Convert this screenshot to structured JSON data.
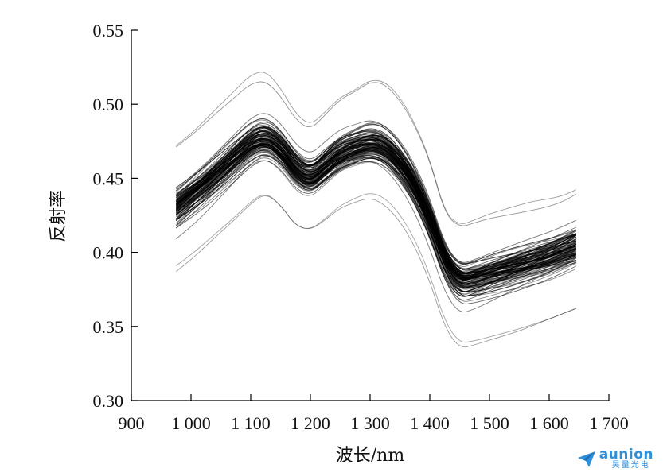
{
  "chart_data": {
    "type": "line",
    "title": "",
    "xlabel": "波长/nm",
    "ylabel": "反射率",
    "xlim": [
      900,
      1700
    ],
    "ylim": [
      0.3,
      0.55
    ],
    "x_ticks": [
      900,
      1000,
      1100,
      1200,
      1300,
      1400,
      1500,
      1600,
      1700
    ],
    "x_tick_labels": [
      "900",
      "1 000",
      "1 100",
      "1 200",
      "1 300",
      "1 400",
      "1 500",
      "1 600",
      "1 700"
    ],
    "y_ticks": [
      0.3,
      0.35,
      0.4,
      0.45,
      0.5,
      0.55
    ],
    "y_tick_labels": [
      "0.30",
      "0.35",
      "0.40",
      "0.45",
      "0.50",
      "0.55"
    ],
    "grid": false,
    "legend": "none",
    "line_color": "#000000",
    "series_count": 120,
    "x": [
      975,
      1000,
      1025,
      1050,
      1075,
      1100,
      1125,
      1150,
      1175,
      1200,
      1225,
      1250,
      1275,
      1300,
      1325,
      1350,
      1375,
      1400,
      1425,
      1450,
      1475,
      1500,
      1525,
      1550,
      1575,
      1600,
      1625,
      1645
    ],
    "series_median": [
      0.43,
      0.438,
      0.446,
      0.455,
      0.464,
      0.473,
      0.477,
      0.47,
      0.456,
      0.449,
      0.458,
      0.466,
      0.47,
      0.473,
      0.47,
      0.46,
      0.445,
      0.423,
      0.395,
      0.38,
      0.382,
      0.385,
      0.388,
      0.391,
      0.394,
      0.397,
      0.401,
      0.404
    ],
    "series_max": [
      0.472,
      0.48,
      0.49,
      0.5,
      0.51,
      0.52,
      0.523,
      0.513,
      0.497,
      0.49,
      0.5,
      0.51,
      0.514,
      0.52,
      0.517,
      0.505,
      0.487,
      0.463,
      0.427,
      0.418,
      0.422,
      0.426,
      0.429,
      0.432,
      0.435,
      0.438,
      0.442,
      0.447
    ],
    "series_min": [
      0.384,
      0.392,
      0.402,
      0.412,
      0.422,
      0.433,
      0.44,
      0.432,
      0.418,
      0.415,
      0.422,
      0.43,
      0.434,
      0.437,
      0.432,
      0.42,
      0.402,
      0.378,
      0.346,
      0.332,
      0.335,
      0.339,
      0.343,
      0.347,
      0.351,
      0.355,
      0.359,
      0.362
    ]
  },
  "watermark": {
    "brand": "aunion",
    "subtitle": "昊量光电"
  }
}
